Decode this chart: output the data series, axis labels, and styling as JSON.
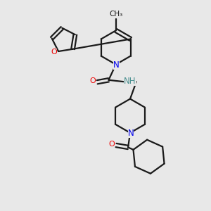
{
  "bg_color": "#e8e8e8",
  "bond_color": "#1a1a1a",
  "N_color": "#0000ee",
  "O_color": "#ee0000",
  "NH_color": "#4a9090",
  "line_width": 1.6,
  "fig_size": [
    3.0,
    3.0
  ],
  "dpi": 100,
  "xlim": [
    0,
    10
  ],
  "ylim": [
    0,
    10
  ]
}
